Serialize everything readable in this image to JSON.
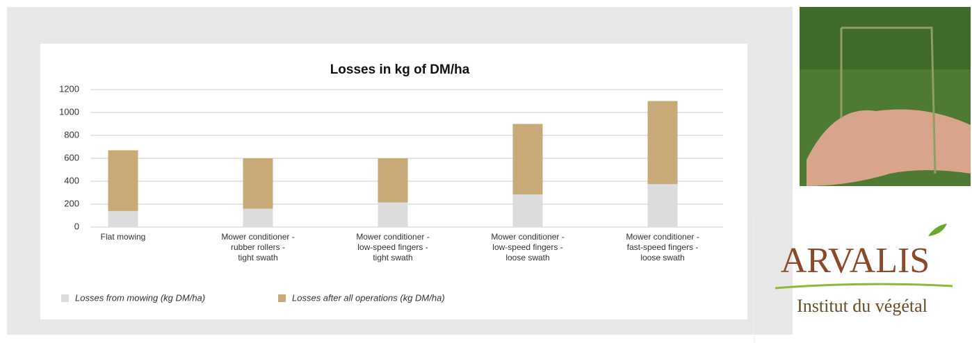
{
  "chart_data": {
    "type": "stacked-bar",
    "title": "Losses in kg of DM/ha",
    "categories": [
      "Flat mowing",
      "Mower conditioner -\nrubber rollers -\ntight swath",
      "Mower conditioner -\nlow-speed fingers -\ntight swath",
      "Mower conditioner -\nlow-speed fingers -\nloose swath",
      "Mower conditioner -\nfast-speed fingers -\nloose swath"
    ],
    "series": [
      {
        "name": "Losses from mowing (kg DM/ha)",
        "color": "#dcdcdc",
        "values": [
          140,
          160,
          215,
          285,
          375
        ]
      },
      {
        "name": "Losses after all operations (kg DM/ha)",
        "color": "#c8aa78",
        "values": [
          530,
          440,
          385,
          615,
          725
        ]
      }
    ],
    "ylim": [
      0,
      1200
    ],
    "yticks": [
      0,
      200,
      400,
      600,
      800,
      1000,
      1200
    ],
    "grid": true,
    "legend": "bottom"
  },
  "logo": {
    "name": "ARVALIS",
    "tagline": "Institut du végétal"
  }
}
